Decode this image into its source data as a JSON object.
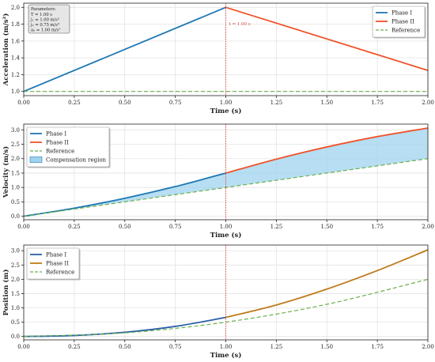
{
  "colors": {
    "phase1": "#1f77b4",
    "phase1_alt": "#2a5fa8",
    "phase2": "#f0532a",
    "phase2_alt": "#c07a1a",
    "reference": "#6ab04c",
    "marker": "#d9534f",
    "fill": "#9fd3ee",
    "grid": "#e3e3e3",
    "axis": "#222222"
  },
  "chart_data": [
    {
      "type": "line",
      "ylabel": "Acceleration (m/s²)",
      "xlabel": "Time (s)",
      "xlim": [
        0,
        2
      ],
      "ylim": [
        0.95,
        2.05
      ],
      "xticks": [
        "0.00",
        "0.25",
        "0.50",
        "0.75",
        "1.00",
        "1.25",
        "1.50",
        "1.75",
        "2.00"
      ],
      "yticks": [
        "1.0",
        "1.2",
        "1.4",
        "1.6",
        "1.8",
        "2.0"
      ],
      "grid": true,
      "legend_position": "top-right",
      "series": [
        {
          "name": "Phase I",
          "x": [
            0,
            1
          ],
          "y": [
            1.0,
            2.0
          ],
          "style": "solid",
          "color_key": "phase1"
        },
        {
          "name": "Phase II",
          "x": [
            1,
            2
          ],
          "y": [
            2.0,
            1.25
          ],
          "style": "solid",
          "color_key": "phase2"
        },
        {
          "name": "Reference",
          "x": [
            0,
            2
          ],
          "y": [
            1.0,
            1.0
          ],
          "style": "dashed",
          "color_key": "reference"
        }
      ],
      "vline": {
        "x": 1.0,
        "label": "t = 1.00 s"
      },
      "params_box": {
        "title": "Parameters:",
        "lines": [
          "T = 1.00 s",
          "j₁ = 1.00 m/s³",
          "j₂ = 0.75 m/s³",
          "a₀ = 1.00 m/s²"
        ]
      }
    },
    {
      "type": "line",
      "ylabel": "Velocity (m/s)",
      "xlabel": "Time (s)",
      "xlim": [
        0,
        2
      ],
      "ylim": [
        -0.12,
        3.2
      ],
      "xticks": [
        "0.00",
        "0.25",
        "0.50",
        "0.75",
        "1.00",
        "1.25",
        "1.50",
        "1.75",
        "2.00"
      ],
      "yticks": [
        "0.0",
        "0.5",
        "1.0",
        "1.5",
        "2.0",
        "2.5",
        "3.0"
      ],
      "grid": true,
      "legend_position": "top-left",
      "series": [
        {
          "name": "Phase I",
          "x": [
            0,
            0.25,
            0.5,
            0.75,
            1.0
          ],
          "y": [
            0,
            0.281,
            0.625,
            1.031,
            1.5
          ],
          "style": "solid",
          "color_key": "phase1"
        },
        {
          "name": "Phase II",
          "x": [
            1.0,
            1.25,
            1.5,
            1.75,
            2.0
          ],
          "y": [
            1.5,
            1.984,
            2.406,
            2.766,
            3.062
          ],
          "style": "solid",
          "color_key": "phase2"
        },
        {
          "name": "Reference",
          "x": [
            0,
            2
          ],
          "y": [
            0,
            2.0
          ],
          "style": "dashed",
          "color_key": "reference"
        }
      ],
      "fill_label": "Compensation region",
      "vline": {
        "x": 1.0
      }
    },
    {
      "type": "line",
      "ylabel": "Position (m)",
      "xlabel": "Time (s)",
      "xlim": [
        0,
        2
      ],
      "ylim": [
        -0.12,
        3.2
      ],
      "xticks": [
        "0.00",
        "0.25",
        "0.50",
        "0.75",
        "1.00",
        "1.25",
        "1.50",
        "1.75",
        "2.00"
      ],
      "yticks": [
        "0.0",
        "0.5",
        "1.0",
        "1.5",
        "2.0",
        "2.5",
        "3.0"
      ],
      "grid": true,
      "legend_position": "top-left",
      "series": [
        {
          "name": "Phase I",
          "x": [
            0,
            0.25,
            0.5,
            0.75,
            1.0
          ],
          "y": [
            0,
            0.034,
            0.146,
            0.352,
            0.667
          ],
          "style": "solid",
          "color_key": "phase1_alt"
        },
        {
          "name": "Phase II",
          "x": [
            1.0,
            1.25,
            1.5,
            1.75,
            2.0
          ],
          "y": [
            0.667,
            1.102,
            1.657,
            2.306,
            3.031
          ],
          "style": "solid",
          "color_key": "phase2_alt"
        },
        {
          "name": "Reference",
          "x": [
            0,
            0.5,
            1.0,
            1.5,
            2.0
          ],
          "y": [
            0,
            0.125,
            0.5,
            1.125,
            2.0
          ],
          "style": "dashed",
          "color_key": "reference"
        }
      ],
      "vline": {
        "x": 1.0
      }
    }
  ]
}
